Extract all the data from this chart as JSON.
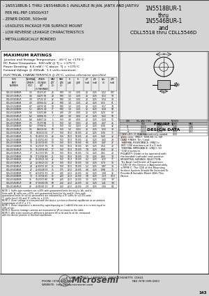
{
  "bg_color": "#d4d4d4",
  "white": "#ffffff",
  "black": "#000000",
  "light_gray": "#ebebeb",
  "mid_gray": "#c0c0c0",
  "dark_gray": "#404040",
  "title_right_lines": [
    "1N5518BUR-1",
    "thru",
    "1N5546BUR-1",
    "and",
    "CDLL5518 thru CDLL5546D"
  ],
  "bullet_lines": [
    "- 1N5518BUR-1 THRU 1N5546BUR-1 AVAILABLE IN JAN, JANTX AND JANTXV",
    "  PER MIL-PRF-19500/437",
    "- ZENER DIODE, 500mW",
    "- LEADLESS PACKAGE FOR SURFACE MOUNT",
    "- LOW REVERSE LEAKAGE CHARACTERISTICS",
    "- METALLURGICALLY BONDED"
  ],
  "max_ratings_title": "MAXIMUM RATINGS",
  "max_ratings_lines": [
    "Junction and Storage Temperature:  -65°C to +175°C",
    "DC Power Dissipation:  500 mW @ TJ = +175°C",
    "Power Derating:  6.6 mW / °C above  TJ = +175°C",
    "Forward Voltage @ 200mA:  1.1 volts maximum"
  ],
  "elec_char_title": "ELECTRICAL CHARACTERISTICS @ 25°C, unless otherwise specified.",
  "hdr_row1": [
    "TYPE\nPART\nNUMBER",
    "NOMINAL\nZENER\nVOLT.\nVZ(nom)",
    "ZENER\nVOLT.\nVZT",
    "MAX ZENER\nIMPEDANCE\nZZT",
    "MAX ZENER\nIMPEDANCE\nZZK",
    "REVERSE LEAKAGE\nCURRENT\nIR",
    "REVERSE\nLEAKAGE\nCURRENT\n@VR",
    "TEST\nCURRENT\nIZT",
    "KNEE\nCURRENT\nIZK",
    "MAX\nVOLTAGE\nREGUL\nΔVZ",
    "MAX\nD.C.\nCURRENT\nIZM"
  ],
  "hdr_units": [
    "(NOTE 1)",
    "(V)",
    "(V MIN/MAX)",
    "(OHMS)",
    "(OHMS)",
    "(µA)",
    "(µA/V)",
    "(mA)",
    "(mA)",
    "(VOLTS)",
    "(mA)"
  ],
  "figure1_label": "FIGURE 1",
  "design_data_title": "DESIGN DATA",
  "design_data_lines": [
    "CASE: DO-213AA, hermetically sealed",
    "glass case. (MELF, SOD-80, LL-34)",
    "LEAD FINISH: Tin / Lead",
    "THERMAL RESISTANCE: (RθJC)=",
    "180 °C/W maximum at 6 x 0 inch",
    "THERMAL IMPEDANCE: (ZθJC): 90",
    "°C/W maximum",
    "POLARITY: Diode to be operated with",
    "the banded (cathode) end positive.",
    "MOUNTING SURFACE SELECTION:",
    "The Axial Coefficient of Expansion",
    "(CDE) Of this Device is Approximately",
    "±7PPM°C. The CDE of the Mounting",
    "Surface System Should Be Selected To",
    "Provide A Suitable Match With This",
    "Device."
  ],
  "footer_phone": "PHONE (978) 620-2600",
  "footer_fax": "FAX (978) 689-0803",
  "footer_address": "6  LAKE  STREET,  LAWRENCE,  MASSACHUSETTS  01841",
  "footer_website": "WEBSITE:  http://www.microsemi.com",
  "page_number": "143",
  "table_rows": [
    [
      "CDLL5518/BUR",
      "3.3",
      "3.14/3.47",
      "28",
      "500",
      "1.0",
      "1.0/1",
      "20",
      "0.25",
      "0.12",
      "107"
    ],
    [
      "CDLL5519/BUR",
      "3.6",
      "3.42/3.78",
      "24",
      "500",
      "1.0",
      "1.0/1",
      "20",
      "0.25",
      "0.13",
      "98"
    ],
    [
      "CDLL5520/BUR",
      "3.9",
      "3.71/4.10",
      "22",
      "500",
      "1.0",
      "1.0/1",
      "20",
      "0.25",
      "0.14",
      "90"
    ],
    [
      "CDLL5521/BUR",
      "4.3",
      "4.09/4.52",
      "22",
      "500",
      "1.0",
      "1.0/1",
      "20",
      "0.25",
      "0.15",
      "81"
    ],
    [
      "CDLL5522/BUR",
      "4.7",
      "4.47/4.94",
      "19",
      "500",
      "1.0",
      "1.0/1",
      "20",
      "0.25",
      "0.17",
      "74"
    ],
    [
      "CDLL5523/BUR",
      "5.1",
      "4.85/5.36",
      "17",
      "500",
      "1.0",
      "1.0/1",
      "20",
      "0.25",
      "0.18",
      "68"
    ],
    [
      "CDLL5524/BUR",
      "5.6",
      "5.32/5.88",
      "11",
      "400",
      "2.0",
      "2.0/1",
      "20",
      "0.25",
      "0.20",
      "62"
    ],
    [
      "CDLL5525/BUR",
      "6.2",
      "5.89/6.51",
      "7",
      "200",
      "3.0",
      "3.0/1",
      "20",
      "0.25",
      "0.22",
      "56"
    ],
    [
      "CDLL5526/BUR",
      "6.8",
      "6.46/7.14",
      "5",
      "150",
      "4.0",
      "4.0/1",
      "20",
      "0.25",
      "0.24",
      "51"
    ],
    [
      "CDLL5527/BUR",
      "7.5",
      "7.13/7.88",
      "6",
      "150",
      "5.0",
      "5.0/1",
      "20",
      "0.25",
      "0.27",
      "46"
    ],
    [
      "CDLL5528/BUR",
      "8.2",
      "7.79/8.61",
      "8",
      "150",
      "5.0",
      "5.0/3",
      "20",
      "0.25",
      "0.30",
      "42"
    ],
    [
      "CDLL5529/BUR",
      "9.1",
      "8.65/9.56",
      "10",
      "150",
      "5.0",
      "5.0/3",
      "20",
      "0.25",
      "0.33",
      "38"
    ],
    [
      "CDLL5530/BUR",
      "10",
      "9.50/10.50",
      "17",
      "150",
      "10.0",
      "10.0/5",
      "20",
      "0.25",
      "0.36",
      "35"
    ],
    [
      "CDLL5531/BUR",
      "11",
      "10.45/11.55",
      "22",
      "150",
      "10.0",
      "10.0/5",
      "20",
      "0.25",
      "0.40",
      "32"
    ],
    [
      "CDLL5532/BUR",
      "12",
      "11.40/12.60",
      "30",
      "150",
      "10.0",
      "10.0/5",
      "20",
      "0.25",
      "0.43",
      "29"
    ],
    [
      "CDLL5533/BUR",
      "13",
      "12.35/13.65",
      "13",
      "150",
      "10.0",
      "10.0/5",
      "9.5",
      "0.25",
      "0.47",
      "27"
    ],
    [
      "CDLL5534/BUR",
      "15",
      "14.25/15.75",
      "16",
      "150",
      "10.0",
      "10.0/5",
      "8.5",
      "0.25",
      "0.54",
      "23"
    ],
    [
      "CDLL5535/BUR",
      "16",
      "15.20/16.80",
      "17",
      "150",
      "10.0",
      "10.0/5",
      "7.8",
      "0.25",
      "0.58",
      "22"
    ],
    [
      "CDLL5536/BUR",
      "17",
      "16.15/17.85",
      "19",
      "150",
      "10.0",
      "10.0/5",
      "7.4",
      "0.25",
      "0.61",
      "20"
    ],
    [
      "CDLL5537/BUR",
      "18",
      "17.10/18.90",
      "21",
      "150",
      "10.0",
      "10.0/5",
      "7.0",
      "0.25",
      "0.65",
      "19"
    ],
    [
      "CDLL5538/BUR",
      "20",
      "19.00/21.00",
      "22",
      "150",
      "10.0",
      "10.0/5",
      "6.2",
      "0.25",
      "0.72",
      "17"
    ],
    [
      "CDLL5539/BUR",
      "22",
      "20.90/23.10",
      "23",
      "150",
      "10.0",
      "10.0/5",
      "5.6",
      "0.25",
      "0.79",
      "16"
    ],
    [
      "CDLL5540/BUR",
      "24",
      "22.80/25.20",
      "25",
      "150",
      "10.0",
      "10.0/5",
      "5.2",
      "0.25",
      "0.87",
      "14"
    ],
    [
      "CDLL5541/BUR",
      "27",
      "25.65/28.35",
      "35",
      "175",
      "20.0",
      "20.0/5",
      "4.6",
      "0.25",
      "0.98",
      "13"
    ],
    [
      "CDLL5542/BUR",
      "30",
      "28.50/31.50",
      "40",
      "200",
      "20.0",
      "20.0/5",
      "4.2",
      "0.25",
      "1.08",
      "12"
    ],
    [
      "CDLL5543/BUR",
      "33",
      "31.35/34.65",
      "45",
      "220",
      "20.0",
      "20.0/5",
      "3.8",
      "0.25",
      "1.19",
      "10.5"
    ],
    [
      "CDLL5544/BUR",
      "36",
      "34.20/37.80",
      "50",
      "220",
      "20.0",
      "20.0/5",
      "3.5",
      "0.25",
      "1.30",
      "9.7"
    ],
    [
      "CDLL5545/BUR",
      "39",
      "37.05/40.95",
      "60",
      "250",
      "20.0",
      "20.0/5",
      "3.2",
      "0.25",
      "1.41",
      "9.0"
    ],
    [
      "CDLL5546/BUR",
      "43",
      "40.85/45.15",
      "70",
      "250",
      "20.0",
      "20.0/5",
      "2.9",
      "0.25",
      "1.56",
      "8.1"
    ]
  ],
  "notes": [
    "NOTE 1  Suffix type numbers are ±20% with guaranteed limits for only Iz, Izk, and Vr.\n         Units with 'A' suffix are ±10%, with guaranteed limits for Vz, and Vr. Units with\n         guaranteed limits for all six parameters are indicated by a 'B' suffix for ±2.0% units,\n         'C' suffix for±1.0% and 'D' suffix for ± 0.5%.",
    "NOTE 2  Zener voltage is measured with the device junction in thermal equilibrium at an ambient\n         temperature of 25°C ± 1°C.",
    "NOTE 3  Zener impedance is derived by superimposing on 1 mA 60 kHz sine is in current equal to\n         10% of Izm.",
    "NOTE 4  Reverse leakage currents are measured at VR as shown on the table.",
    "NOTE 5  ΔVz is the maximum difference between VZ at Izt and Vz at Izk, measured\n         with the device junction in thermal equilibrium."
  ],
  "microsemi_orange": "#d4691e",
  "microsemi_blue": "#1a3a6b",
  "dim_table": [
    [
      "DIM",
      "MIL AND TYPE",
      "",
      "INCHES",
      ""
    ],
    [
      "",
      "MIN",
      "MAX",
      "MIN",
      "MAX"
    ],
    [
      "D",
      "0.055",
      "0.075",
      "1.40",
      "1.90"
    ],
    [
      "L",
      "0.150",
      "0.177",
      "3.81",
      "4.50"
    ],
    [
      "d",
      "0.020",
      "0.024",
      "0.50",
      "0.61"
    ],
    [
      "s",
      "0.020",
      "",
      "0.50",
      ""
    ]
  ]
}
